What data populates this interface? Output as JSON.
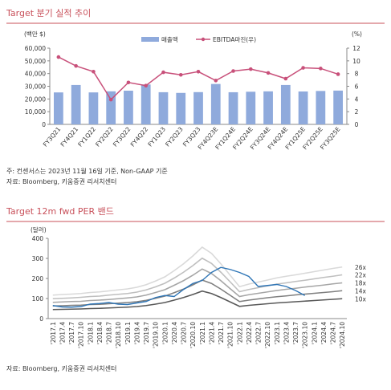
{
  "chart_data": [
    {
      "type": "combo",
      "title": "Target 분기 실적 추이",
      "ylabel": "(백만 $)",
      "y2label": "(%)",
      "categories": [
        "FY3Q21",
        "FY4Q21",
        "FY1Q22",
        "FY2Q22",
        "FY3Q22",
        "FY4Q22",
        "FY1Q23",
        "FY2Q23",
        "FY3Q23",
        "FY4Q23E",
        "FY1Q24E",
        "FY2Q24E",
        "FY3Q24E",
        "FY4Q24E",
        "FY1Q25E",
        "FY2Q25E",
        "FY3Q25E"
      ],
      "series": [
        {
          "name": "매출액",
          "type": "bar",
          "color": "#8faadc",
          "values": [
            25160,
            30996,
            25170,
            26037,
            26517,
            31395,
            25322,
            24773,
            25398,
            31800,
            25300,
            25700,
            26000,
            31000,
            25900,
            26300,
            26600
          ]
        },
        {
          "name": "EBITDA마진(우)",
          "type": "line",
          "axis": "y2",
          "color": "#c8507a",
          "values": [
            10.6,
            9.2,
            8.3,
            3.9,
            6.6,
            6.1,
            8.2,
            7.8,
            8.3,
            6.9,
            8.4,
            8.7,
            8.1,
            7.2,
            8.9,
            8.8,
            7.9
          ]
        }
      ],
      "ylim": [
        0,
        60000
      ],
      "yticks": [
        0,
        {
          "value": 10000,
          "label": "10,000"
        },
        {
          "value": 20000,
          "label": "20,000"
        },
        {
          "value": 30000,
          "label": "30,000"
        },
        {
          "value": 40000,
          "label": "40,000"
        },
        {
          "value": 50000,
          "label": "50,000"
        },
        {
          "value": 60000,
          "label": "60,000"
        }
      ],
      "y2lim": [
        0,
        12
      ],
      "y2ticks": [
        0,
        2,
        4,
        6,
        8,
        10,
        12
      ],
      "notes": [
        "주: 컨센서스는 2023년 11월 16일 기준, Non-GAAP 기준",
        "자료: Bloomberg, 키움증권 리서치센터"
      ]
    },
    {
      "type": "line",
      "title": "Target 12m fwd PER 밴드",
      "ylabel": "(달러)",
      "categories": [
        "'2017.1",
        "'2017.4",
        "'2017.7",
        "'2017.10",
        "'2018.1",
        "'2018.4",
        "'2018.7",
        "'2018.10",
        "'2019.1",
        "'2019.4",
        "'2019.7",
        "'2019.10",
        "'2020.1",
        "'2020.4",
        "'2020.7",
        "'2020.10",
        "'2021.1",
        "'2021.4",
        "'2021.7",
        "'2021.10",
        "'2022.1",
        "'2022.4",
        "'2022.7",
        "'2022.10",
        "'2023.1",
        "'2023.4",
        "'2023.7",
        "'2023.10",
        "'2024.1",
        "'2024.4",
        "'2024.7",
        "'2024.10"
      ],
      "series": [
        {
          "name": "26x",
          "color": "#d9d9d9",
          "values": [
            117,
            120,
            122,
            125,
            130,
            133,
            138,
            143,
            148,
            156,
            169,
            187,
            208,
            239,
            273,
            312,
            356,
            325,
            273,
            216,
            159,
            172,
            182,
            192,
            203,
            211,
            218,
            226,
            234,
            242,
            250,
            257
          ]
        },
        {
          "name": "22x",
          "color": "#bfbfbf",
          "values": [
            99,
            101,
            103,
            106,
            110,
            112,
            117,
            121,
            125,
            132,
            143,
            158,
            176,
            202,
            231,
            264,
            301,
            275,
            231,
            183,
            134,
            145,
            154,
            163,
            172,
            178,
            185,
            191,
            198,
            205,
            211,
            218
          ]
        },
        {
          "name": "18x",
          "color": "#a6a6a6",
          "values": [
            81,
            83,
            85,
            86,
            90,
            92,
            95,
            99,
            103,
            108,
            117,
            130,
            144,
            166,
            189,
            216,
            247,
            225,
            189,
            149,
            110,
            119,
            126,
            133,
            140,
            146,
            151,
            157,
            162,
            167,
            173,
            178
          ]
        },
        {
          "name": "14x",
          "color": "#808080",
          "values": [
            63,
            64,
            66,
            67,
            70,
            71,
            74,
            77,
            80,
            84,
            91,
            101,
            112,
            129,
            147,
            168,
            192,
            175,
            147,
            116,
            85,
            92,
            98,
            104,
            109,
            113,
            118,
            122,
            126,
            130,
            134,
            139
          ]
        },
        {
          "name": "10x",
          "color": "#595959",
          "values": [
            45,
            46,
            47,
            48,
            50,
            51,
            53,
            55,
            57,
            60,
            65,
            72,
            80,
            92,
            105,
            120,
            137,
            125,
            105,
            83,
            61,
            66,
            70,
            74,
            78,
            81,
            84,
            87,
            90,
            93,
            96,
            99
          ]
        },
        {
          "color": "#2e75b6",
          "values": [
            65,
            58,
            57,
            60,
            72,
            75,
            80,
            72,
            70,
            78,
            85,
            105,
            115,
            110,
            145,
            175,
            190,
            230,
            255,
            245,
            230,
            210,
            160,
            165,
            170,
            160,
            140,
            115,
            null,
            null,
            null,
            null
          ]
        }
      ],
      "ylim": [
        0,
        400
      ],
      "yticks": [
        0,
        100,
        200,
        300,
        400
      ],
      "source": "자료: Bloomberg, 키움증권 리서치센터"
    }
  ]
}
